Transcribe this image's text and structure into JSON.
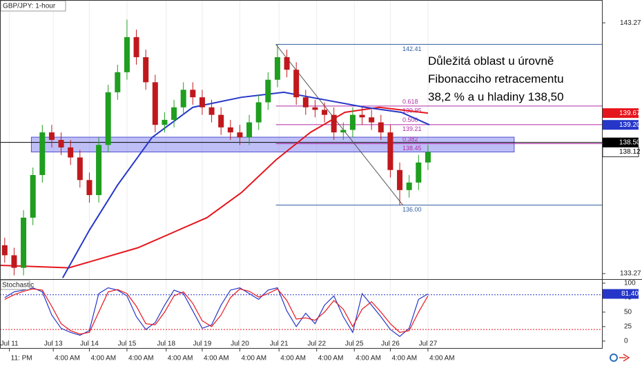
{
  "chart_data": [
    {
      "type": "candlestick",
      "title": "GBP/JPY: 1-hour",
      "annotation_lines": [
        "Důležitá oblast u úrovně",
        "Fibonacciho retracementu",
        "38,2 % a u hladiny 138,50"
      ],
      "xlim": [
        0,
        384
      ],
      "ylim": [
        133.05,
        144.18
      ],
      "yticks": [
        143.27,
        133.27
      ],
      "up_color": "#1f9e1f",
      "down_color": "#c0181c",
      "x": [
        3,
        9,
        15,
        21,
        27,
        33,
        39,
        45,
        51,
        57,
        63,
        69,
        75,
        81,
        87,
        93,
        99,
        105,
        111,
        117,
        123,
        129,
        135,
        141,
        147,
        153,
        159,
        165,
        171,
        177,
        183,
        189,
        195,
        201,
        207,
        213,
        219,
        225,
        231,
        237,
        243,
        249,
        255,
        261,
        267,
        273
      ],
      "open": [
        134.4,
        134.0,
        133.5,
        135.5,
        137.2,
        138.9,
        138.6,
        138.3,
        137.9,
        137.0,
        136.4,
        138.4,
        140.5,
        141.3,
        142.7,
        141.9,
        140.9,
        139.2,
        139.4,
        139.9,
        140.6,
        140.3,
        139.9,
        139.6,
        139.1,
        138.9,
        138.7,
        139.3,
        140.1,
        141.0,
        141.9,
        141.4,
        140.3,
        139.9,
        139.8,
        139.6,
        138.9,
        139.0,
        139.6,
        139.5,
        139.3,
        138.9,
        137.4,
        136.6,
        136.9,
        137.7
      ],
      "high": [
        134.7,
        134.3,
        135.8,
        137.5,
        139.2,
        139.2,
        138.9,
        138.6,
        138.2,
        137.3,
        138.7,
        140.8,
        141.6,
        143.4,
        143.0,
        142.2,
        141.2,
        139.7,
        140.2,
        140.9,
        140.9,
        140.6,
        140.2,
        139.9,
        139.4,
        139.2,
        139.6,
        140.4,
        141.3,
        142.41,
        142.2,
        141.7,
        140.6,
        140.2,
        140.1,
        139.9,
        139.3,
        139.9,
        139.9,
        139.8,
        139.6,
        139.2,
        137.7,
        137.2,
        138.0,
        138.4
      ],
      "low": [
        133.7,
        133.2,
        133.2,
        135.2,
        136.9,
        138.3,
        138.0,
        137.6,
        136.7,
        136.1,
        136.1,
        138.1,
        140.2,
        141.0,
        141.6,
        140.6,
        138.9,
        138.9,
        139.1,
        139.6,
        140.0,
        139.6,
        139.3,
        138.8,
        138.6,
        138.4,
        138.4,
        139.0,
        139.8,
        140.7,
        141.1,
        140.0,
        139.6,
        139.5,
        139.3,
        138.6,
        138.6,
        138.7,
        139.2,
        139.0,
        138.6,
        137.1,
        136.0,
        136.3,
        136.6,
        137.4
      ],
      "close": [
        134.0,
        133.5,
        135.5,
        137.2,
        138.9,
        138.6,
        138.3,
        137.9,
        137.0,
        136.4,
        138.4,
        140.5,
        141.3,
        142.7,
        141.9,
        140.9,
        139.2,
        139.4,
        139.9,
        140.6,
        140.3,
        139.9,
        139.6,
        139.1,
        138.9,
        138.7,
        139.3,
        140.1,
        141.0,
        141.9,
        141.4,
        140.3,
        139.9,
        139.8,
        139.6,
        138.9,
        139.0,
        139.6,
        139.5,
        139.3,
        138.9,
        137.4,
        136.6,
        136.9,
        137.7,
        138.12
      ],
      "lines": [
        {
          "color": "#e5151d",
          "x": [
            0,
            44,
            88,
            132,
            154,
            176,
            198,
            220,
            242,
            273
          ],
          "values": [
            133.6,
            133.5,
            134.3,
            135.5,
            136.5,
            137.8,
            138.9,
            139.7,
            139.9,
            139.67
          ]
        },
        {
          "color": "#2536c8",
          "x": [
            40,
            57,
            75,
            97,
            123,
            154,
            181,
            207,
            233,
            256,
            274
          ],
          "values": [
            133.1,
            135.0,
            136.8,
            138.7,
            139.9,
            140.3,
            140.5,
            140.2,
            139.9,
            139.7,
            139.2
          ]
        }
      ],
      "zone": {
        "x": [
          20,
          328
        ],
        "from": 138.12,
        "to": 138.71,
        "color": "#8080f0"
      },
      "hline": 138.5,
      "trend": {
        "x": [
          176,
          257
        ],
        "values": [
          142.41,
          136
        ]
      },
      "fib": {
        "x": [
          176,
          384
        ],
        "levels": [
          {
            "value": 142.41,
            "color": "#2f5c9e"
          },
          {
            "ratio": "0.618",
            "value": 139.95,
            "color": "#b02aa5"
          },
          {
            "ratio": "0.500",
            "value": 139.21,
            "color": "#b02aa5"
          },
          {
            "ratio": "0.382",
            "value": 138.45,
            "color": "#b02aa5"
          },
          {
            "value": 136,
            "label": "136.00",
            "color": "#2f5c9e"
          }
        ]
      },
      "price_labels": [
        {
          "value": 139.67,
          "color": "#e5151d"
        },
        {
          "value": 139.2,
          "label": "139.20",
          "color": "#2536c8"
        },
        {
          "value": 138.5,
          "label": "138.50",
          "color": "#000000"
        },
        {
          "value": 138.12,
          "color": "#ffffff"
        }
      ]
    },
    {
      "type": "line",
      "title": "Stochastic",
      "xlim": [
        0,
        384
      ],
      "ylim": [
        -12,
        107
      ],
      "yticks": [
        100,
        75,
        50,
        25,
        0
      ],
      "levels": [
        {
          "value": 80,
          "color": "#2536c8"
        },
        {
          "value": 20,
          "color": "#e5151d"
        }
      ],
      "x": [
        3,
        9,
        15,
        21,
        27,
        33,
        39,
        45,
        51,
        57,
        63,
        69,
        75,
        81,
        87,
        93,
        99,
        105,
        111,
        117,
        123,
        129,
        135,
        141,
        147,
        153,
        159,
        165,
        171,
        177,
        183,
        189,
        195,
        201,
        207,
        213,
        219,
        225,
        231,
        237,
        243,
        249,
        255,
        261,
        267,
        273
      ],
      "series": [
        {
          "color": "#2536c8",
          "values": [
            75,
            85,
            88,
            92,
            85,
            45,
            22,
            15,
            10,
            18,
            82,
            92,
            88,
            78,
            42,
            20,
            32,
            62,
            88,
            82,
            52,
            22,
            28,
            62,
            88,
            92,
            82,
            72,
            88,
            92,
            52,
            25,
            48,
            30,
            62,
            78,
            42,
            15,
            82,
            62,
            42,
            20,
            8,
            22,
            72,
            81.4
          ]
        },
        {
          "color": "#e5151d",
          "values": [
            72,
            80,
            86,
            90,
            88,
            60,
            30,
            18,
            12,
            15,
            50,
            85,
            89,
            82,
            60,
            30,
            28,
            50,
            78,
            85,
            65,
            35,
            25,
            45,
            75,
            90,
            86,
            76,
            82,
            90,
            70,
            38,
            40,
            36,
            50,
            70,
            55,
            25,
            55,
            68,
            50,
            30,
            15,
            18,
            50,
            78
          ]
        }
      ],
      "last_label": {
        "value": 81.4,
        "label": "81.40",
        "color": "#2536c8"
      },
      "xticks": [
        {
          "value": 6,
          "label": "Jul 11"
        },
        {
          "value": 34,
          "label": "Jul 13"
        },
        {
          "value": 57,
          "label": "Jul 14"
        },
        {
          "value": 81,
          "label": "Jul 15"
        },
        {
          "value": 106,
          "label": "Jul 18"
        },
        {
          "value": 129,
          "label": "Jul 19"
        },
        {
          "value": 153,
          "label": "Jul 20"
        },
        {
          "value": 178,
          "label": "Jul 21"
        },
        {
          "value": 202,
          "label": "Jul 22"
        },
        {
          "value": 226,
          "label": "Jul 25"
        },
        {
          "value": 249,
          "label": "Jul 26"
        },
        {
          "value": 273,
          "label": "Jul 27"
        }
      ],
      "xtick_times": [
        "11: PM",
        "4:00 AM",
        "4:00 AM",
        "4:00 AM",
        "4:00 AM",
        "4:00 AM",
        "4:00 AM",
        "4:00 AM",
        "4:00 AM",
        "4:00 AM",
        "4:00 AM",
        "4:00 AM"
      ]
    }
  ]
}
